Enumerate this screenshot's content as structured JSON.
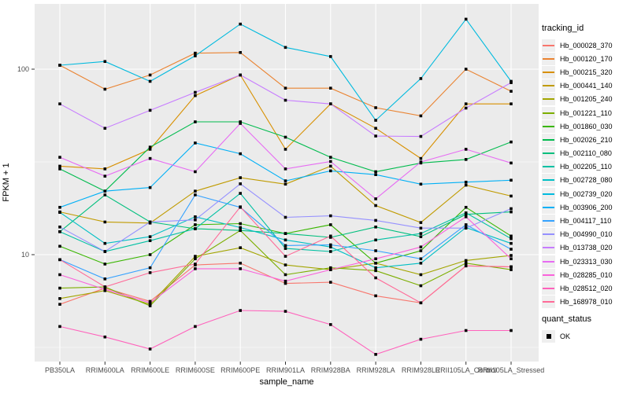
{
  "chart_data": {
    "type": "line",
    "title": "",
    "xlabel": "sample_name",
    "ylabel": "FPKM + 1",
    "y_scale": "log10",
    "y_tick_labels": [
      "100",
      "10"
    ],
    "y_ticks": [
      100,
      10
    ],
    "y_minor_ticks": [
      31.623,
      3.162
    ],
    "ylim": [
      2.6,
      225
    ],
    "grid": "white-on-gray",
    "legend_position": "right",
    "point_shape": "filled-square",
    "point_color": "#000000",
    "categories": [
      "PB350LA",
      "RRIM600LA",
      "RRIM600LE",
      "RRIM600SE",
      "RRIM600PE",
      "RRIM901LA",
      "RRIM928BA",
      "RRIM928LA",
      "RRIM928LE",
      "RRII105LA_Control",
      "RRII105LA_Stressed"
    ],
    "series": [
      {
        "name": "Hb_000028_370",
        "color": "#F8766D",
        "values": [
          5.4,
          6.6,
          5.6,
          8.8,
          9.0,
          7.0,
          7.1,
          6.0,
          5.5,
          8.7,
          8.6
        ]
      },
      {
        "name": "Hb_000120_170",
        "color": "#EA8331",
        "values": [
          105,
          78,
          93,
          122,
          123,
          79,
          79,
          62,
          56,
          100,
          76
        ]
      },
      {
        "name": "Hb_000215_320",
        "color": "#D89000",
        "values": [
          30,
          29,
          37,
          72,
          93,
          37,
          65,
          48,
          33,
          65,
          65
        ]
      },
      {
        "name": "Hb_000441_140",
        "color": "#C09B00",
        "values": [
          17,
          15,
          14.8,
          22,
          26,
          24,
          30,
          18.4,
          14.9,
          23.7,
          20.7
        ]
      },
      {
        "name": "Hb_001205_240",
        "color": "#A3A500",
        "values": [
          5.8,
          6.4,
          5.4,
          9.8,
          10.9,
          8.8,
          8.3,
          9.0,
          7.8,
          9.3,
          9.9
        ]
      },
      {
        "name": "Hb_001221_110",
        "color": "#7CAE00",
        "values": [
          6.6,
          6.7,
          5.3,
          9.5,
          13.5,
          7.8,
          8.5,
          8.2,
          6.8,
          9.0,
          8.3
        ]
      },
      {
        "name": "Hb_001860_030",
        "color": "#39B600",
        "values": [
          11.1,
          8.9,
          10.0,
          14.5,
          14.7,
          13.0,
          14.5,
          9.0,
          10.5,
          18.0,
          12.6
        ]
      },
      {
        "name": "Hb_002026_210",
        "color": "#00BB4E",
        "values": [
          29,
          22,
          38,
          52,
          52,
          43,
          33.5,
          28,
          31.2,
          32.6,
          40.5
        ]
      },
      {
        "name": "Hb_002110_080",
        "color": "#00BF7D",
        "values": [
          13.3,
          21,
          15,
          13.8,
          13.5,
          13,
          12.4,
          14.1,
          12.5,
          16.5,
          17
        ]
      },
      {
        "name": "Hb_002205_110",
        "color": "#00C1A3",
        "values": [
          13.3,
          10.4,
          11.9,
          13.8,
          21.4,
          10.8,
          10.4,
          12.0,
          13.0,
          16.8,
          12.2
        ]
      },
      {
        "name": "Hb_002728_080",
        "color": "#00BFC4",
        "values": [
          16.9,
          11.5,
          12.5,
          16.0,
          14.0,
          12.0,
          11.0,
          8.5,
          9.0,
          14.0,
          11.5
        ]
      },
      {
        "name": "Hb_002739_020",
        "color": "#00BADE",
        "values": [
          105,
          110,
          86,
          118,
          175,
          131,
          117,
          53,
          89,
          186,
          86
        ]
      },
      {
        "name": "Hb_003906_200",
        "color": "#00B0F6",
        "values": [
          18,
          22,
          23,
          40,
          35,
          25,
          28.3,
          27,
          24,
          24.6,
          25.2
        ]
      },
      {
        "name": "Hb_004117_110",
        "color": "#35A2FF",
        "values": [
          9.4,
          7.4,
          8.5,
          21,
          18,
          11.2,
          11.3,
          10.5,
          9.5,
          14.5,
          10.7
        ]
      },
      {
        "name": "Hb_004990_010",
        "color": "#9590FF",
        "values": [
          14.1,
          10.4,
          15,
          15.4,
          24.1,
          15.9,
          16.2,
          15.3,
          13.9,
          13.9,
          17.7
        ]
      },
      {
        "name": "Hb_013738_020",
        "color": "#C77CFF",
        "values": [
          65,
          48,
          60,
          75,
          93,
          68,
          65,
          43.6,
          43.4,
          61.7,
          84.6
        ]
      },
      {
        "name": "Hb_023313_030",
        "color": "#E76BF3",
        "values": [
          33.5,
          26.5,
          33,
          28,
          51,
          29,
          31.8,
          20,
          31.6,
          37,
          31.2
        ]
      },
      {
        "name": "Hb_028285_010",
        "color": "#FA62DB",
        "values": [
          7.8,
          6.5,
          5.5,
          8.4,
          8.4,
          7.2,
          8.3,
          9.5,
          11,
          16,
          9.5
        ]
      },
      {
        "name": "Hb_028512_020",
        "color": "#FF62BC",
        "values": [
          4.1,
          3.6,
          3.1,
          4.1,
          5.0,
          4.95,
          4.2,
          2.9,
          3.5,
          3.9,
          3.9
        ]
      },
      {
        "name": "Hb_168978_010",
        "color": "#FF6A98",
        "values": [
          9.4,
          6.7,
          8.0,
          8.9,
          18.1,
          9.8,
          12.6,
          7.5,
          5.5,
          8.7,
          8.6
        ]
      }
    ]
  },
  "legend": {
    "tracking_title": "tracking_id",
    "quant_title": "quant_status",
    "quant_items": [
      {
        "label": "OK",
        "marker": "black-square"
      }
    ]
  },
  "panel": {
    "background": "#EBEBEB",
    "gridline_color": "#FFFFFF",
    "tick_text_color": "#4D4D4D"
  }
}
